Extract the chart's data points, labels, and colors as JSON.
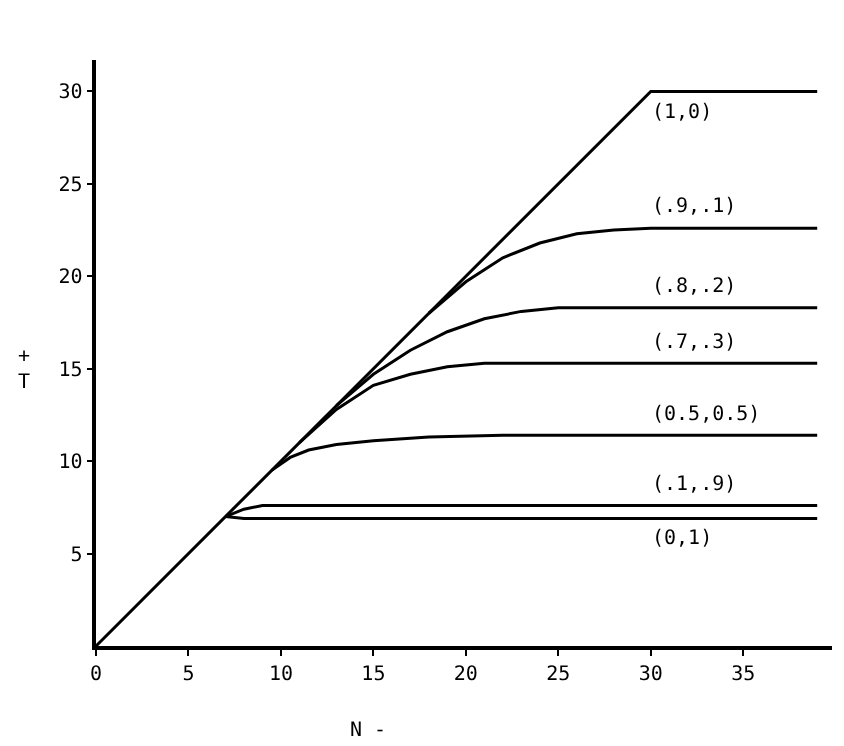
{
  "chart_data": {
    "type": "line",
    "xlabel": "N -",
    "ylabel": "+\nT",
    "xlim": [
      0,
      39.8
    ],
    "ylim": [
      0,
      31.7
    ],
    "xticks": [
      0,
      5,
      10,
      15,
      20,
      25,
      30,
      35
    ],
    "yticks": [
      5,
      10,
      15,
      20,
      25,
      30
    ],
    "legend": false,
    "marker": "none",
    "line_style": "solid",
    "series": [
      {
        "name": "(1,0)",
        "color": "#000000",
        "x": [
          0,
          30,
          39
        ],
        "values": [
          0,
          30,
          30
        ]
      },
      {
        "name": "(.9,.1)",
        "color": "#000000",
        "x": [
          18,
          20,
          22,
          24,
          26,
          28,
          30,
          35,
          39
        ],
        "values": [
          18,
          19.7,
          21,
          21.8,
          22.3,
          22.5,
          22.6,
          22.6,
          22.6
        ]
      },
      {
        "name": "(.8,.2)",
        "color": "#000000",
        "x": [
          13,
          15,
          17,
          19,
          21,
          23,
          25,
          30,
          39
        ],
        "values": [
          13,
          14.7,
          16,
          17,
          17.7,
          18.1,
          18.3,
          18.3,
          18.3
        ]
      },
      {
        "name": "(.7,.3)",
        "color": "#000000",
        "x": [
          11,
          13,
          15,
          17,
          19,
          21,
          25,
          39
        ],
        "values": [
          11,
          12.8,
          14.1,
          14.7,
          15.1,
          15.3,
          15.3,
          15.3
        ]
      },
      {
        "name": "(0.5,0.5)",
        "color": "#000000",
        "x": [
          9.5,
          10.5,
          11.5,
          13,
          15,
          18,
          22,
          39
        ],
        "values": [
          9.5,
          10.2,
          10.6,
          10.9,
          11.1,
          11.3,
          11.4,
          11.4
        ]
      },
      {
        "name": "(.1,.9)",
        "color": "#000000",
        "x": [
          7,
          8,
          9,
          12,
          39
        ],
        "values": [
          7,
          7.4,
          7.6,
          7.6,
          7.6
        ]
      },
      {
        "name": "(0,1)",
        "color": "#000000",
        "x": [
          7,
          8,
          39
        ],
        "values": [
          7,
          6.9,
          6.9
        ]
      }
    ]
  }
}
